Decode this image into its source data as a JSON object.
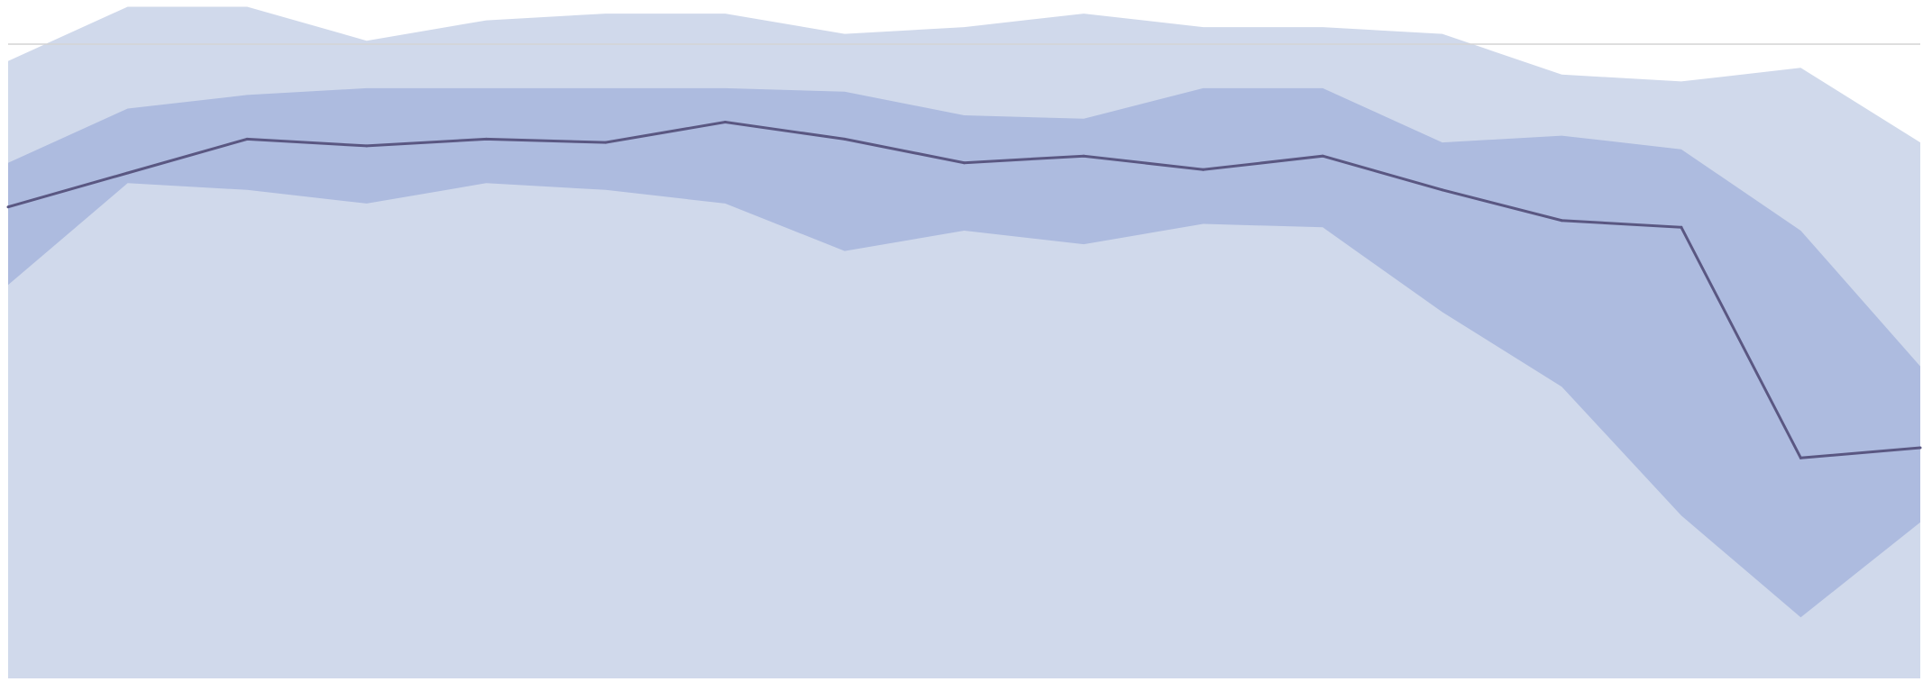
{
  "chart_data": {
    "type": "area",
    "title": "",
    "xlabel": "",
    "ylabel": "",
    "x": [
      0,
      1,
      2,
      3,
      4,
      5,
      6,
      7,
      8,
      9,
      10,
      11,
      12,
      13,
      14,
      15,
      16
    ],
    "ylim": [
      0,
      100
    ],
    "reference_line": 93.5,
    "series": [
      {
        "role": "outer-band",
        "upper": [
          91,
          99,
          99,
          94,
          97,
          98,
          98,
          95,
          96,
          98,
          96,
          96,
          95,
          89,
          88,
          90,
          79
        ],
        "lower": [
          0,
          0,
          0,
          0,
          0,
          0,
          0,
          0,
          0,
          0,
          0,
          0,
          0,
          0,
          0,
          0,
          0
        ]
      },
      {
        "role": "inner-band",
        "upper": [
          76,
          84,
          86,
          87,
          87,
          87,
          87,
          86.5,
          83,
          82.5,
          87,
          87,
          79,
          80,
          78,
          66,
          46
        ],
        "lower": [
          58,
          73,
          72,
          70,
          73,
          72,
          70,
          63,
          66,
          64,
          67,
          66.5,
          54,
          43,
          24,
          9,
          23
        ]
      },
      {
        "role": "center-line",
        "values": [
          69.5,
          74.5,
          79.5,
          78.5,
          79.5,
          79,
          82,
          79.5,
          76,
          77,
          75,
          77,
          72,
          67.5,
          66.5,
          32.5,
          34
        ]
      }
    ],
    "colors": {
      "outer_band": "#d0d9eb",
      "inner_band": "#adbbdf",
      "center_line": "#5a5782",
      "reference_line": "#d4d4d4"
    },
    "grid": false,
    "legend": "none"
  }
}
